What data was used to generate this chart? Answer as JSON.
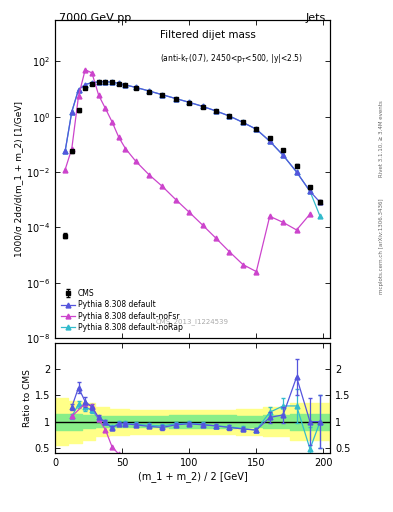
{
  "title_top": "7000 GeV pp",
  "title_right": "Jets",
  "ylabel_main": "1000/σ 2dσ/d(m_1 + m_2) [1/GeV]",
  "ylabel_ratio": "Ratio to CMS",
  "xlabel": "(m_1 + m_2) / 2 [GeV]",
  "watermark": "CMS_2013_I1224539",
  "rivet_label": "Rivet 3.1.10, ≥ 3.4M events",
  "mcplots_label": "mcplots.cern.ch [arXiv:1306.3436]",
  "cms_data_x": [
    7.5,
    12.5,
    17.5,
    22.5,
    27.5,
    32.5,
    37.5,
    42.5,
    47.5,
    52.5,
    60,
    70,
    80,
    90,
    100,
    110,
    120,
    130,
    140,
    150,
    160,
    170,
    180,
    190,
    197.5
  ],
  "cms_data_y": [
    5e-05,
    0.055,
    1.7,
    10.5,
    15.0,
    17.5,
    18.0,
    17.5,
    15.5,
    13.5,
    11.0,
    8.0,
    6.0,
    4.3,
    3.1,
    2.2,
    1.55,
    1.05,
    0.62,
    0.36,
    0.17,
    0.06,
    0.017,
    0.0028,
    0.00085
  ],
  "cms_data_yerr_lo": [
    1e-05,
    0.008,
    0.2,
    0.8,
    0.8,
    0.8,
    0.8,
    0.8,
    0.7,
    0.6,
    0.5,
    0.4,
    0.3,
    0.2,
    0.15,
    0.11,
    0.08,
    0.055,
    0.033,
    0.02,
    0.01,
    0.004,
    0.002,
    0.0004,
    0.00015
  ],
  "cms_data_yerr_hi": [
    1e-05,
    0.008,
    0.2,
    0.8,
    0.8,
    0.8,
    0.8,
    0.8,
    0.7,
    0.6,
    0.5,
    0.4,
    0.3,
    0.2,
    0.15,
    0.11,
    0.08,
    0.055,
    0.033,
    0.02,
    0.01,
    0.004,
    0.002,
    0.0004,
    0.00015
  ],
  "pythia_default_x": [
    7.5,
    12.5,
    17.5,
    22.5,
    27.5,
    32.5,
    37.5,
    42.5,
    47.5,
    52.5,
    60,
    70,
    80,
    90,
    100,
    110,
    120,
    130,
    140,
    150,
    160,
    170,
    180,
    190,
    197.5
  ],
  "pythia_default_y": [
    0.055,
    1.5,
    9.5,
    14.5,
    17.0,
    18.0,
    18.5,
    17.5,
    16.0,
    14.0,
    11.5,
    8.5,
    6.2,
    4.5,
    3.3,
    2.35,
    1.6,
    1.05,
    0.62,
    0.35,
    0.13,
    0.04,
    0.01,
    0.002,
    0.0008
  ],
  "pythia_noFsr_x": [
    7.5,
    12.5,
    17.5,
    22.5,
    27.5,
    32.5,
    37.5,
    42.5,
    47.5,
    52.5,
    60,
    70,
    80,
    90,
    100,
    110,
    120,
    130,
    140,
    150,
    160,
    170,
    180,
    190
  ],
  "pythia_noFsr_y": [
    0.012,
    0.07,
    5.5,
    50.0,
    38.0,
    6.0,
    2.0,
    0.65,
    0.18,
    0.07,
    0.025,
    0.008,
    0.003,
    0.001,
    0.00035,
    0.00012,
    4e-05,
    1.3e-05,
    4.5e-06,
    2.5e-06,
    0.00025,
    0.00015,
    8e-05,
    0.0003
  ],
  "pythia_noRap_x": [
    7.5,
    12.5,
    17.5,
    22.5,
    27.5,
    32.5,
    37.5,
    42.5,
    47.5,
    52.5,
    60,
    70,
    80,
    90,
    100,
    110,
    120,
    130,
    140,
    150,
    160,
    170,
    180,
    190,
    197.5
  ],
  "pythia_noRap_y": [
    0.055,
    1.5,
    9.5,
    14.5,
    17.0,
    18.0,
    18.5,
    17.5,
    16.0,
    14.0,
    11.5,
    8.5,
    6.2,
    4.5,
    3.3,
    2.35,
    1.6,
    1.05,
    0.62,
    0.35,
    0.13,
    0.04,
    0.01,
    0.002,
    0.00025
  ],
  "ratio_default_x": [
    12.5,
    17.5,
    22.5,
    27.5,
    32.5,
    37.5,
    42.5,
    47.5,
    52.5,
    60,
    70,
    80,
    90,
    100,
    110,
    120,
    130,
    140,
    150,
    160,
    170,
    180,
    190,
    197.5
  ],
  "ratio_default_y": [
    1.28,
    1.65,
    1.38,
    1.28,
    1.08,
    0.99,
    0.88,
    0.96,
    0.96,
    0.94,
    0.91,
    0.89,
    0.94,
    0.96,
    0.94,
    0.92,
    0.89,
    0.86,
    0.84,
    1.08,
    1.13,
    1.85,
    1.0,
    1.0
  ],
  "ratio_default_yerr": [
    0.05,
    0.1,
    0.1,
    0.05,
    0.05,
    0.04,
    0.04,
    0.04,
    0.04,
    0.04,
    0.04,
    0.04,
    0.04,
    0.04,
    0.04,
    0.04,
    0.04,
    0.04,
    0.04,
    0.1,
    0.15,
    0.35,
    0.45,
    0.5
  ],
  "ratio_noFsr_x": [
    12.5,
    22.5,
    27.5,
    32.5,
    37.5,
    42.5,
    47.5
  ],
  "ratio_noFsr_y": [
    1.1,
    1.35,
    1.3,
    1.05,
    0.85,
    0.52,
    0.38
  ],
  "ratio_noRap_x": [
    12.5,
    17.5,
    22.5,
    27.5,
    32.5,
    37.5,
    42.5,
    47.5,
    52.5,
    60,
    70,
    80,
    90,
    100,
    110,
    120,
    130,
    140,
    150,
    160,
    170,
    180,
    190,
    197.5
  ],
  "ratio_noRap_y": [
    1.1,
    1.33,
    1.28,
    1.22,
    1.05,
    1.0,
    0.89,
    0.97,
    0.97,
    0.95,
    0.93,
    0.92,
    0.96,
    0.97,
    0.95,
    0.92,
    0.9,
    0.87,
    0.84,
    1.18,
    1.3,
    1.3,
    0.48,
    1.0
  ],
  "ratio_noRap_yerr": [
    0.05,
    0.07,
    0.07,
    0.05,
    0.04,
    0.04,
    0.04,
    0.04,
    0.04,
    0.04,
    0.04,
    0.04,
    0.04,
    0.04,
    0.04,
    0.04,
    0.04,
    0.04,
    0.04,
    0.1,
    0.15,
    0.32,
    0.42,
    0.5
  ],
  "yellow_band_x": [
    0,
    10,
    20,
    30,
    40,
    55,
    65,
    85,
    115,
    135,
    155,
    175,
    205
  ],
  "yellow_band_lo": [
    0.55,
    0.6,
    0.65,
    0.72,
    0.75,
    0.77,
    0.77,
    0.77,
    0.77,
    0.75,
    0.72,
    0.65,
    0.55
  ],
  "yellow_band_hi": [
    1.45,
    1.4,
    1.35,
    1.28,
    1.25,
    1.23,
    1.23,
    1.23,
    1.23,
    1.25,
    1.28,
    1.35,
    1.45
  ],
  "green_band_x": [
    0,
    10,
    20,
    30,
    40,
    55,
    65,
    85,
    115,
    135,
    155,
    175,
    205
  ],
  "green_band_lo": [
    0.85,
    0.85,
    0.87,
    0.9,
    0.9,
    0.9,
    0.9,
    0.88,
    0.88,
    0.9,
    0.88,
    0.85,
    0.85
  ],
  "green_band_hi": [
    1.15,
    1.15,
    1.13,
    1.1,
    1.1,
    1.1,
    1.1,
    1.12,
    1.12,
    1.1,
    1.12,
    1.15,
    1.15
  ],
  "color_default": "#5555dd",
  "color_noFsr": "#cc44cc",
  "color_noRap": "#33bbcc",
  "color_cms": "black",
  "ylim_main": [
    1e-08,
    3000.0
  ],
  "ylim_ratio": [
    0.4,
    2.5
  ],
  "xlim": [
    0,
    205
  ]
}
